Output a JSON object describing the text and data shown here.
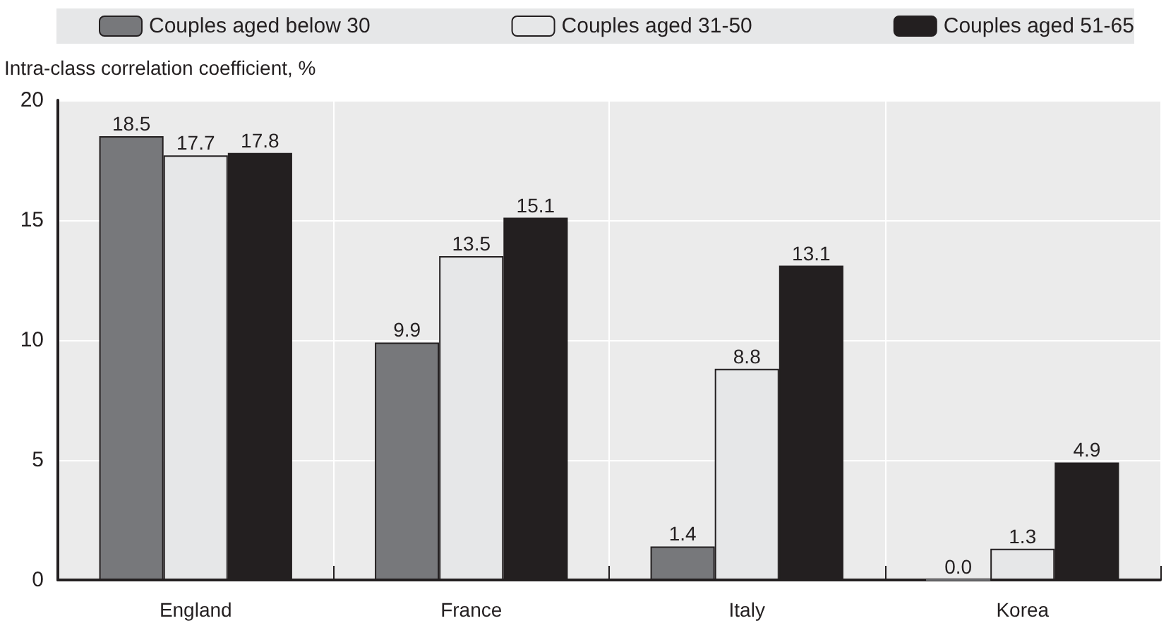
{
  "chart_data": {
    "type": "bar",
    "ylabel": "Intra-class correlation coefficient, %",
    "categories": [
      "England",
      "France",
      "Italy",
      "Korea"
    ],
    "series": [
      {
        "name": "Couples aged below 30",
        "color": "#77787b",
        "values": [
          18.5,
          9.9,
          1.4,
          0.0
        ],
        "value_labels": [
          "18.5",
          "9.9",
          "1.4",
          "0.0"
        ]
      },
      {
        "name": "Couples aged 31-50",
        "color": "#e6e7e8",
        "values": [
          17.7,
          13.5,
          8.8,
          1.3
        ],
        "value_labels": [
          "17.7",
          "13.5",
          "8.8",
          "1.3"
        ]
      },
      {
        "name": "Couples aged 51-65",
        "color": "#231f20",
        "values": [
          17.8,
          15.1,
          13.1,
          4.9
        ],
        "value_labels": [
          "17.8",
          "15.1",
          "13.1",
          "4.9"
        ]
      }
    ],
    "ylim": [
      0,
      20
    ],
    "yticks": [
      0,
      5,
      10,
      15,
      20
    ],
    "grid": true,
    "legend": "top"
  }
}
